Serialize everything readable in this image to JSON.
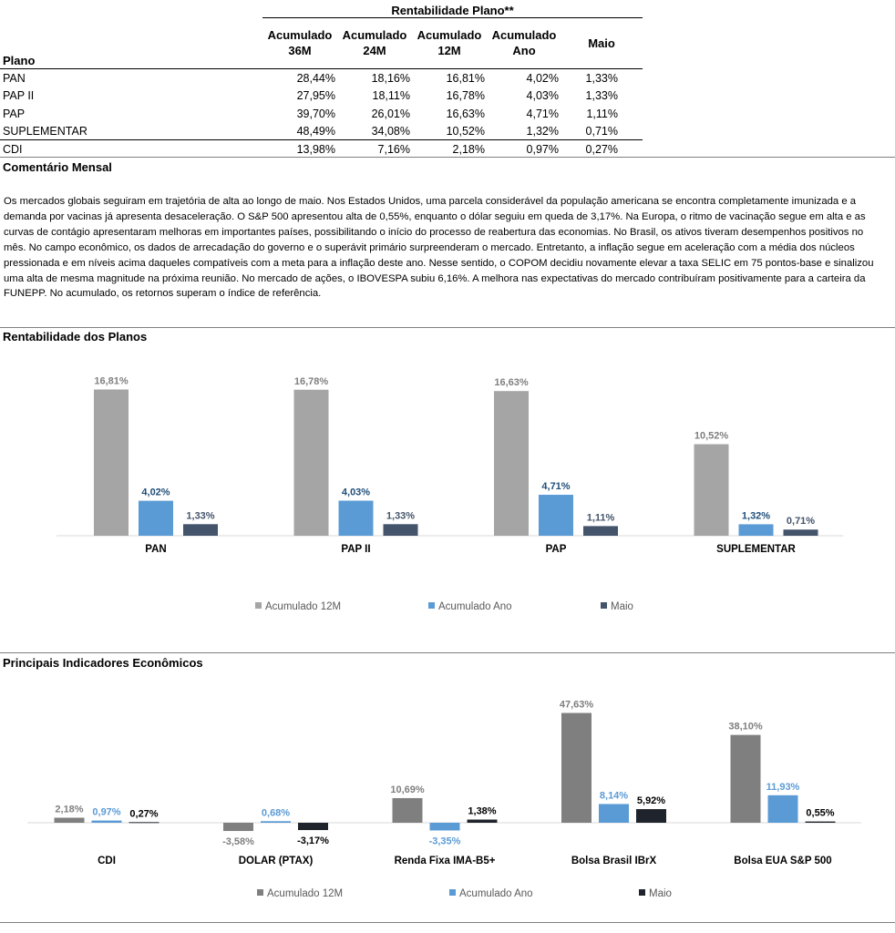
{
  "table": {
    "group_header": "Rentabilidade Plano**",
    "col_plano": "Plano",
    "columns": [
      {
        "l1": "Acumulado",
        "l2": "36M"
      },
      {
        "l1": "Acumulado",
        "l2": "24M"
      },
      {
        "l1": "Acumulado",
        "l2": "12M"
      },
      {
        "l1": "Acumulado",
        "l2": "Ano"
      },
      {
        "l1": "Maio",
        "l2": ""
      }
    ],
    "rows": [
      {
        "name": "PAN",
        "values": [
          "28,44%",
          "18,16%",
          "16,81%",
          "4,02%",
          "1,33%"
        ]
      },
      {
        "name": "PAP II",
        "values": [
          "27,95%",
          "18,11%",
          "16,78%",
          "4,03%",
          "1,33%"
        ]
      },
      {
        "name": "PAP",
        "values": [
          "39,70%",
          "26,01%",
          "16,63%",
          "4,71%",
          "1,11%"
        ]
      },
      {
        "name": "SUPLEMENTAR",
        "values": [
          "48,49%",
          "34,08%",
          "10,52%",
          "1,32%",
          "0,71%"
        ]
      },
      {
        "name": "CDI",
        "values": [
          "13,98%",
          "7,16%",
          "2,18%",
          "0,97%",
          "0,27%"
        ]
      }
    ]
  },
  "comentario": {
    "title": "Comentário Mensal",
    "text": "Os mercados globais seguiram em trajetória de alta ao longo de maio. Nos Estados Unidos,  uma parcela considerável da população americana se encontra completamente imunizada e a demanda por vacinas já apresenta desaceleração. O S&P 500 apresentou alta de 0,55%, enquanto o dólar seguiu em queda de 3,17%. Na Europa, o ritmo de vacinação segue em alta e as curvas de contágio apresentaram melhoras em importantes países, possibilitando o início do processo de reabertura das economias. No Brasil, os ativos tiveram desempenhos positivos no mês. No campo econômico, os dados de arrecadação do governo e o superávit primário surpreenderam o mercado. Entretanto, a inflação segue em aceleração com a média dos núcleos pressionada e em níveis acima daqueles compatíveis com a meta para a inflação deste ano. Nesse sentido, o COPOM decidiu novamente elevar a taxa SELIC em 75 pontos-base e sinalizou uma alta de mesma magnitude na próxima reunião. No mercado de ações, o IBOVESPA subiu 6,16%. A melhora nas expectativas do mercado contribuíram positivamente para a carteira da FUNEPP. No acumulado, os retornos superam o índice de referência."
  },
  "chart1_title": "Rentabilidade dos Planos",
  "chart2_title": "Principais Indicadores Econômicos",
  "chart_data": [
    {
      "type": "bar",
      "title": "Rentabilidade dos Planos",
      "categories": [
        "PAN",
        "PAP II",
        "PAP",
        "SUPLEMENTAR"
      ],
      "series": [
        {
          "name": "Acumulado 12M",
          "values": [
            16.81,
            16.78,
            16.63,
            10.52
          ],
          "labels": [
            "16,81%",
            "16,78%",
            "16,63%",
            "10,52%"
          ],
          "color": "#a5a5a5",
          "label_color": "#7f7f7f"
        },
        {
          "name": "Acumulado Ano",
          "values": [
            4.02,
            4.03,
            4.71,
            1.32
          ],
          "labels": [
            "4,02%",
            "4,03%",
            "4,71%",
            "1,32%"
          ],
          "color": "#5b9bd5",
          "label_color": "#1f4e79"
        },
        {
          "name": "Maio",
          "values": [
            1.33,
            1.33,
            1.11,
            0.71
          ],
          "labels": [
            "1,33%",
            "1,33%",
            "1,11%",
            "0,71%"
          ],
          "color": "#44546a",
          "label_color": "#44546a"
        }
      ],
      "legend_position": "bottom",
      "grid": false
    },
    {
      "type": "bar",
      "title": "Principais Indicadores Econômicos",
      "categories": [
        "CDI",
        "DOLAR (PTAX)",
        "Renda Fixa IMA-B5+",
        "Bolsa Brasil IBrX",
        "Bolsa EUA S&P 500"
      ],
      "series": [
        {
          "name": "Acumulado 12M",
          "values": [
            2.18,
            -3.58,
            10.69,
            47.63,
            38.1
          ],
          "labels": [
            "2,18%",
            "-3,58%",
            "10,69%",
            "47,63%",
            "38,10%"
          ],
          "color": "#7f7f7f",
          "label_color": "#7f7f7f"
        },
        {
          "name": "Acumulado Ano",
          "values": [
            0.97,
            0.68,
            -3.35,
            8.14,
            11.93
          ],
          "labels": [
            "0,97%",
            "0,68%",
            "-3,35%",
            "8,14%",
            "11,93%"
          ],
          "color": "#5b9bd5",
          "label_color": "#5b9bd5"
        },
        {
          "name": "Maio",
          "values": [
            0.27,
            -3.17,
            1.38,
            5.92,
            0.55
          ],
          "labels": [
            "0,27%",
            "-3,17%",
            "1,38%",
            "5,92%",
            "0,55%"
          ],
          "color": "#1f242c",
          "label_color": "#000000"
        }
      ],
      "legend_position": "bottom",
      "grid": false
    }
  ]
}
